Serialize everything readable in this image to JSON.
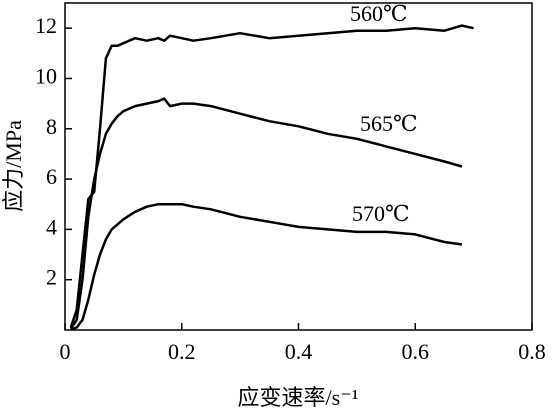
{
  "chart_data": {
    "type": "line",
    "x_label": "应变速率/s⁻¹",
    "y_label": "应力/MPa",
    "x": [
      0.01,
      0.02,
      0.03,
      0.04,
      0.05,
      0.06,
      0.07,
      0.08,
      0.09,
      0.1,
      0.12,
      0.14,
      0.16,
      0.17,
      0.18,
      0.2,
      0.22,
      0.25,
      0.3,
      0.35,
      0.4,
      0.45,
      0.5,
      0.55,
      0.6,
      0.65,
      0.68,
      0.7
    ],
    "series": [
      {
        "name": "560℃",
        "color": "#000000",
        "values": [
          0.1,
          0.8,
          3,
          5.2,
          5.5,
          8,
          10.8,
          11.3,
          11.3,
          11.4,
          11.6,
          11.5,
          11.6,
          11.5,
          11.7,
          11.6,
          11.5,
          11.6,
          11.8,
          11.6,
          11.7,
          11.8,
          11.9,
          11.9,
          12.0,
          11.9,
          12.1,
          12.0
        ]
      },
      {
        "name": "565℃",
        "color": "#000000",
        "values": [
          0.05,
          0.4,
          2,
          4.5,
          6.0,
          7.0,
          7.8,
          8.2,
          8.5,
          8.7,
          8.9,
          9.0,
          9.1,
          9.2,
          8.9,
          9.0,
          9.0,
          8.9,
          8.6,
          8.3,
          8.1,
          7.8,
          7.6,
          7.3,
          7.0,
          6.7,
          6.5,
          null
        ]
      },
      {
        "name": "570℃",
        "color": "#000000",
        "values": [
          0.02,
          0.1,
          0.4,
          1.2,
          2.2,
          3.0,
          3.6,
          4.0,
          4.2,
          4.4,
          4.7,
          4.9,
          5.0,
          5.0,
          5.0,
          5.0,
          4.9,
          4.8,
          4.5,
          4.3,
          4.1,
          4.0,
          3.9,
          3.9,
          3.8,
          3.5,
          3.4,
          null
        ]
      }
    ],
    "xlim": [
      0,
      0.8
    ],
    "xticks": [
      0,
      0.2,
      0.4,
      0.6,
      0.8
    ],
    "ylim": [
      0,
      13
    ],
    "yticks": [
      2,
      4,
      6,
      8,
      10,
      12
    ]
  }
}
